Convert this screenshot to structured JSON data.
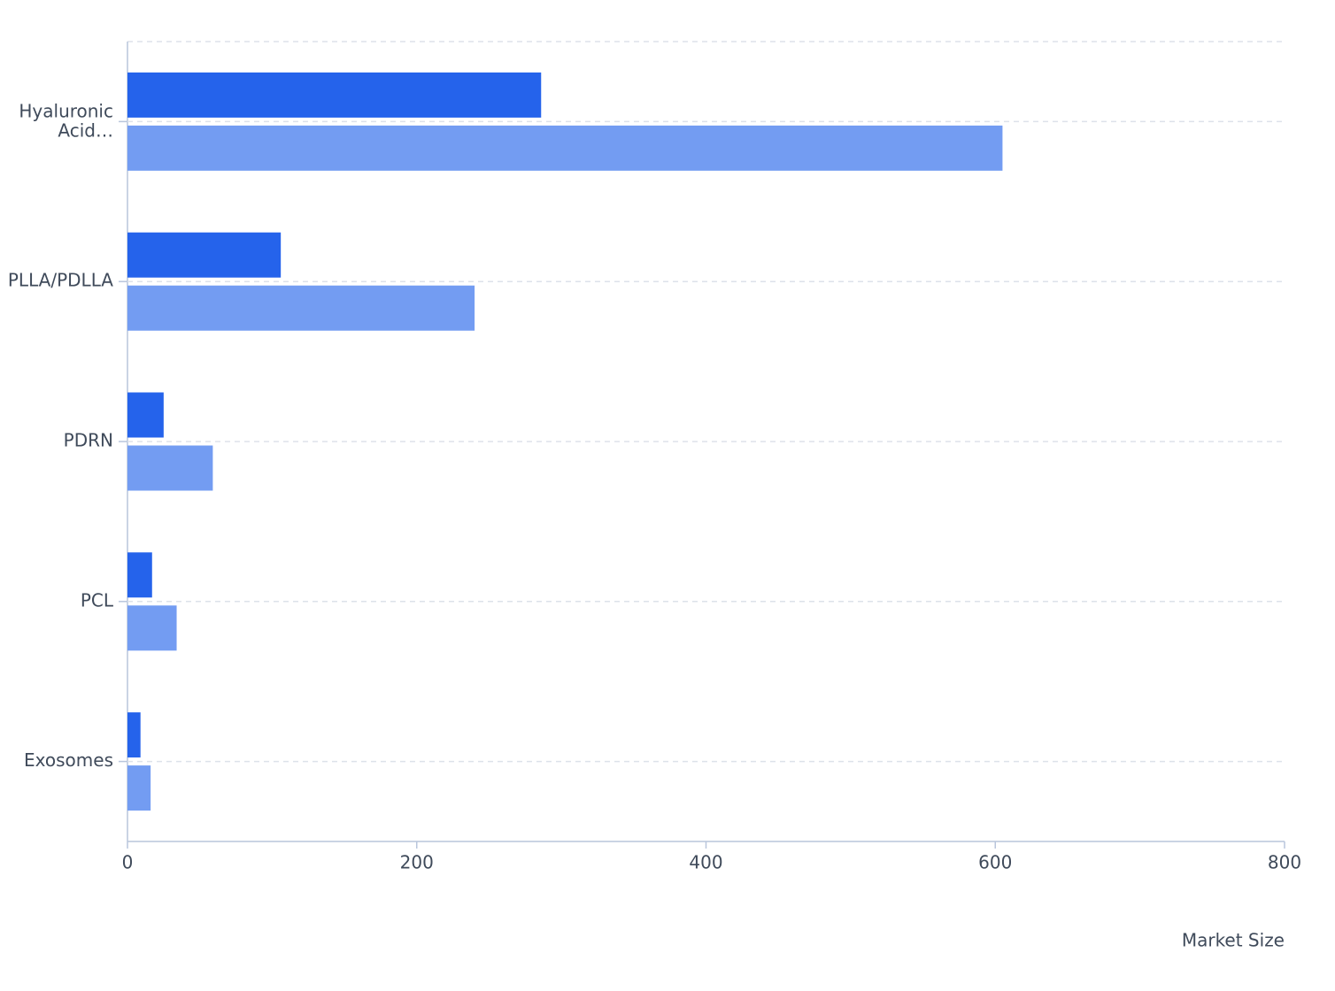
{
  "chart_data": {
    "type": "hbar",
    "categories": [
      "Hyaluronic Acid…",
      "PLLA/PDLLA",
      "PDRN",
      "PCL",
      "Exosomes"
    ],
    "series": [
      {
        "color": "#2563eb",
        "values": [
          286,
          106,
          25,
          17,
          9
        ]
      },
      {
        "color": "#739cf2",
        "values": [
          605,
          240,
          59,
          34,
          16
        ]
      }
    ],
    "xlim": [
      0,
      800
    ],
    "xticks": [
      0,
      200,
      400,
      600,
      800
    ],
    "x_label": "Market Size",
    "grid": true
  }
}
